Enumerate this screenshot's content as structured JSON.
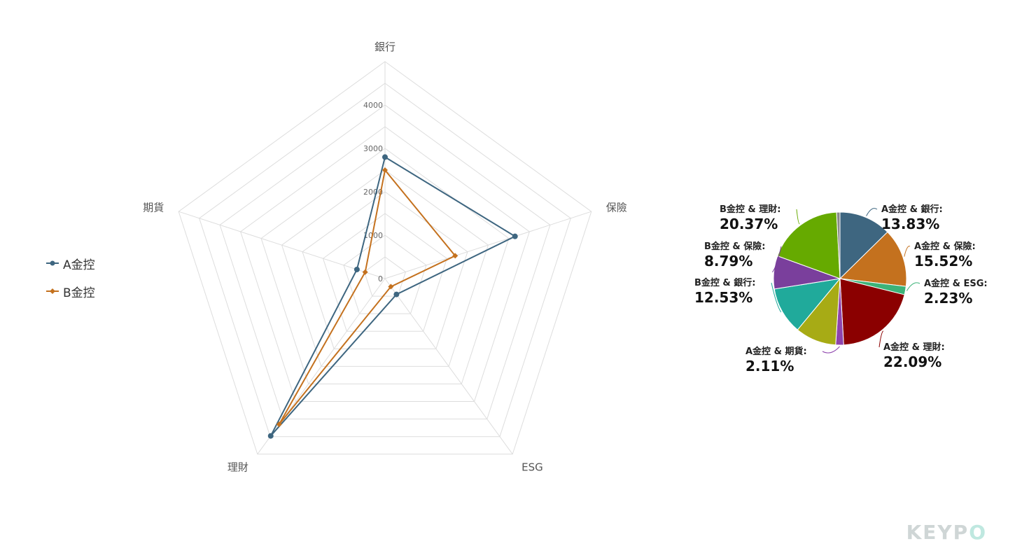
{
  "chart_data": [
    {
      "type": "radar",
      "axes": [
        "銀行",
        "保險",
        "ESG",
        "理財",
        "期貨"
      ],
      "radial_ticks": [
        0,
        1000,
        2000,
        3000,
        4000
      ],
      "rmax": 5000,
      "series": [
        {
          "name": "A金控",
          "values": [
            2800,
            3150,
            450,
            4480,
            680
          ],
          "color": "#3e6680",
          "marker": "circle"
        },
        {
          "name": "B金控",
          "values": [
            2500,
            1700,
            230,
            4150,
            480
          ],
          "color": "#c4711e",
          "marker": "diamond"
        }
      ],
      "legend_position": "left"
    },
    {
      "type": "pie",
      "slices": [
        {
          "label": "A金控 & 銀行:",
          "value": 13.83,
          "value_text": "13.83%",
          "color": "#3e6680"
        },
        {
          "label": "A金控 & 保險:",
          "value": 15.52,
          "value_text": "15.52%",
          "color": "#c4711e"
        },
        {
          "label": "A金控 & ESG:",
          "value": 2.23,
          "value_text": "2.23%",
          "color": "#3cb378"
        },
        {
          "label": "A金控 & 理財:",
          "value": 22.09,
          "value_text": "22.09%",
          "color": "#8b0000"
        },
        {
          "label": "A金控 & 期貨:",
          "value": 2.11,
          "value_text": "2.11%",
          "color": "#8e44ad"
        },
        {
          "label": "",
          "value": 10.9,
          "value_text": "",
          "color": "#a7ab15"
        },
        {
          "label": "B金控 & 銀行:",
          "value": 12.53,
          "value_text": "12.53%",
          "color": "#20aa9b"
        },
        {
          "label": "B金控 & 保險:",
          "value": 8.79,
          "value_text": "8.79%",
          "color": "#7a3f9c"
        },
        {
          "label": "B金控 & 理財:",
          "value": 20.37,
          "value_text": "20.37%",
          "color": "#66aa00"
        },
        {
          "label": "",
          "value": 0.9,
          "value_text": "",
          "color": "#888888"
        }
      ]
    }
  ],
  "branding": {
    "logo_text_main": "KEYP",
    "logo_text_o": "O"
  }
}
